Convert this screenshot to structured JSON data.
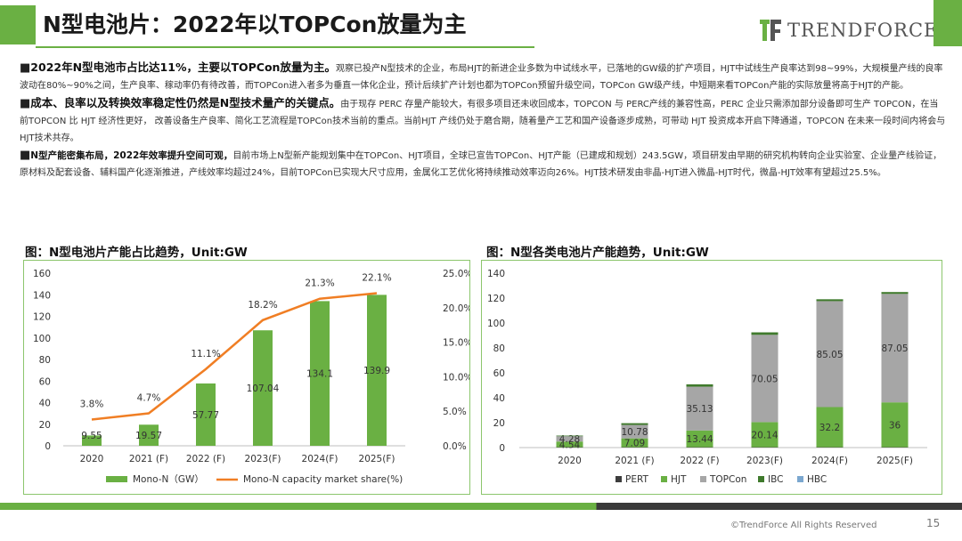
{
  "header": {
    "title": "N型电池片：2022年以TOPCon放量为主",
    "brand": "TrendForce",
    "page_number": "15",
    "copyright": "©TrendForce All Rights Reserved"
  },
  "paragraphs": [
    {
      "bullet": "■",
      "lead": "2022年N型电池市占比达11%，主要以TOPCon放量为主。",
      "body": "观察已投产N型技术的企业，布局HJT的新进企业多数为中试线水平，已落地的GW级的扩产项目，HJT中试线生产良率达到98~99%，大规模量产线的良率波动在80%~90%之间，生产良率、稼动率仍有待改善，而TOPCon进入者多为垂直一体化企业，预计后续扩产计划也都为TOPCon预留升级空间，TOPCon GW级产线，中短期来看TOPCon产能的实际放量将高于HJT的产能。"
    },
    {
      "bullet": "■",
      "lead": "成本、良率以及转换效率稳定性仍然是N型技术量产的关键点。",
      "body": "由于现存 PERC 存量产能较大，有很多项目还未收回成本，TOPCON 与 PERC产线的兼容性高，PERC 企业只需添加部分设备即可生产 TOPCON，在当前TOPCON 比 HJT 经济性更好， 改善设备生产良率、简化工艺流程是TOPCon技术当前的重点。当前HJT 产线仍处于磨合期，随着量产工艺和国产设备逐步成熟，可带动 HJT 投资成本开启下降通道，TOPCON 在未来一段时间内将会与 HJT技术共存。"
    },
    {
      "bullet": "■",
      "lead": "N型产能密集布局，2022年效率提升空间可观，",
      "body": "目前市场上N型新产能规划集中在TOPCon、HJT项目，全球已宣告TOPCon、HJT产能（已建成和规划）243.5GW，项目研发由早期的研究机构转向企业实验室、企业量产线验证，原材料及配套设备、辅料国产化逐渐推进，产线效率均超过24%，目前TOPCon已实现大尺寸应用，金属化工艺优化将持续推动效率迈向26%。HJT技术研发由非晶-HJT进入微晶-HJT时代，微晶-HJT效率有望超过25.5%。"
    }
  ],
  "chart_data": [
    {
      "type": "bar",
      "title": "图：N型电池片产能占比趋势，Unit:GW",
      "categories": [
        "2020",
        "2021 (F)",
        "2022 (F)",
        "2023(F)",
        "2024(F)",
        "2025(F)"
      ],
      "series": [
        {
          "name": "Mono-N（GW）",
          "type": "bar",
          "axis": "left",
          "color": "#6ab043",
          "values": [
            9.55,
            19.57,
            57.77,
            107.04,
            134.1,
            139.9
          ],
          "labels": [
            "9.55",
            "19.57",
            "57.77",
            "107.04",
            "134.1",
            "139.9"
          ]
        },
        {
          "name": "Mono-N capacity market share(%)",
          "type": "line",
          "axis": "right",
          "color": "#f07e24",
          "values": [
            3.8,
            4.7,
            11.1,
            18.2,
            21.3,
            22.1
          ],
          "labels": [
            "3.8%",
            "4.7%",
            "11.1%",
            "18.2%",
            "21.3%",
            "22.1%"
          ]
        }
      ],
      "ylim": [
        0,
        160
      ],
      "yticks": [
        "0",
        "20",
        "40",
        "60",
        "80",
        "100",
        "120",
        "140",
        "160"
      ],
      "y2lim": [
        0,
        25
      ],
      "y2ticks": [
        "0.0%",
        "5.0%",
        "10.0%",
        "15.0%",
        "20.0%",
        "25.0%"
      ],
      "grid": false,
      "legend": "bottom"
    },
    {
      "type": "bar",
      "stacked": true,
      "title": "图：N型各类电池片产能趋势，Unit:GW",
      "categories": [
        "2020",
        "2021 (F)",
        "2022 (F)",
        "2023(F)",
        "2024(F)",
        "2025(F)"
      ],
      "series": [
        {
          "name": "PERT",
          "color": "#3d3d3d",
          "values": [
            0.3,
            0.3,
            0.3,
            0.3,
            0.3,
            0.3
          ]
        },
        {
          "name": "HJT",
          "color": "#6ab043",
          "values": [
            4.54,
            7.09,
            13.44,
            20.14,
            32.2,
            36
          ],
          "labels": [
            "4.54",
            "7.09",
            "13.44",
            "20.14",
            "32.2",
            "36"
          ]
        },
        {
          "name": "TOPCon",
          "color": "#a6a6a6",
          "values": [
            4.28,
            10.78,
            35.13,
            70.05,
            85.05,
            87.05
          ],
          "labels": [
            "4.28",
            "10.78",
            "35.13",
            "70.05",
            "85.05",
            "87.05"
          ]
        },
        {
          "name": "IBC",
          "color": "#3f7a2c",
          "values": [
            0.5,
            1.4,
            1.9,
            2.0,
            1.5,
            1.5
          ]
        },
        {
          "name": "HBC",
          "color": "#7ba7cf",
          "values": [
            0,
            0,
            0,
            0,
            0,
            0
          ]
        }
      ],
      "ylim": [
        0,
        140
      ],
      "yticks": [
        "0",
        "20",
        "40",
        "60",
        "80",
        "100",
        "120",
        "140"
      ],
      "grid": false,
      "legend": "bottom"
    }
  ]
}
